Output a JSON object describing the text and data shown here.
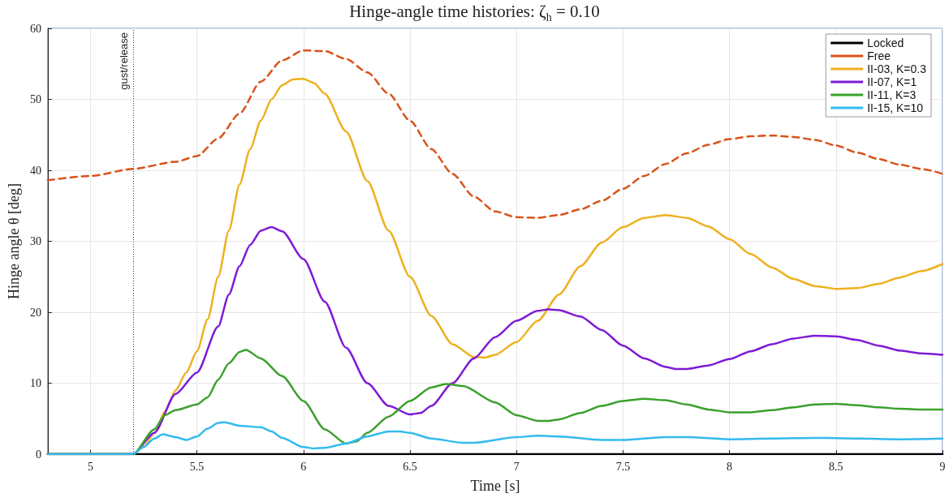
{
  "chart_data": {
    "type": "line",
    "title": "Hinge-angle time histories: ζ$_{h}$ = 0.10",
    "xlabel": "Time [s]",
    "ylabel": "Hinge angle θ [deg]",
    "xlim": [
      4.8,
      9
    ],
    "xticks": [
      5,
      5.5,
      6,
      6.5,
      7,
      7.5,
      8,
      8.5,
      9
    ],
    "ylim": [
      0,
      60
    ],
    "yticks": [
      0,
      10,
      20,
      30,
      40,
      50,
      60
    ],
    "grid": true,
    "legend": "top right",
    "marker": "none",
    "ref_lines": [
      {
        "axis": "x",
        "value": 5.2,
        "label": "gust/release",
        "color": "#333333",
        "line_style": "dotted"
      }
    ],
    "series": [
      {
        "name": "Locked",
        "color": "#000000",
        "x": [
          4.8,
          9
        ],
        "values": [
          0,
          0
        ]
      },
      {
        "name": "Free",
        "color": "#d95319",
        "line_style": "dashed",
        "x": [
          4.8,
          5.0,
          5.2,
          5.4,
          5.5,
          5.6,
          5.7,
          5.8,
          5.9,
          6.0,
          6.1,
          6.2,
          6.3,
          6.4,
          6.5,
          6.6,
          6.7,
          6.8,
          6.9,
          7.0,
          7.1,
          7.2,
          7.3,
          7.4,
          7.5,
          7.6,
          7.7,
          7.8,
          7.9,
          8.0,
          8.1,
          8.2,
          8.3,
          8.4,
          8.5,
          8.6,
          8.7,
          8.8,
          8.9,
          9.0
        ],
        "values": [
          38.6,
          39.2,
          40.2,
          41.2,
          42,
          44.5,
          48,
          52.5,
          55.5,
          56.9,
          56.8,
          55.7,
          53.8,
          50.8,
          47,
          43,
          39.5,
          36.3,
          34.2,
          33.4,
          33.3,
          33.7,
          34.5,
          35.7,
          37.4,
          39.2,
          40.9,
          42.4,
          43.6,
          44.4,
          44.8,
          44.9,
          44.7,
          44.3,
          43.5,
          42.5,
          41.6,
          40.8,
          40.2,
          39.5
        ]
      },
      {
        "name": "II-03, K=0.3",
        "color": "#edb120",
        "x": [
          4.8,
          5.2,
          5.25,
          5.3,
          5.35,
          5.4,
          5.45,
          5.5,
          5.55,
          5.6,
          5.65,
          5.7,
          5.75,
          5.8,
          5.85,
          5.9,
          5.95,
          6.0,
          6.05,
          6.1,
          6.2,
          6.3,
          6.4,
          6.5,
          6.6,
          6.7,
          6.8,
          6.85,
          6.9,
          7.0,
          7.1,
          7.2,
          7.3,
          7.4,
          7.5,
          7.6,
          7.7,
          7.8,
          7.9,
          8.0,
          8.1,
          8.2,
          8.3,
          8.4,
          8.5,
          8.6,
          8.7,
          8.8,
          8.9,
          9.0
        ],
        "values": [
          0,
          0,
          1,
          3,
          6,
          9,
          11.5,
          14.5,
          19,
          25,
          31.5,
          38,
          43,
          47,
          50,
          52,
          52.8,
          52.9,
          52.3,
          50.8,
          45.5,
          38.5,
          31.5,
          25,
          19.5,
          15.5,
          13.7,
          13.6,
          14,
          15.8,
          18.8,
          22.5,
          26.5,
          29.8,
          32,
          33.3,
          33.7,
          33.3,
          32.1,
          30.3,
          28.2,
          26.3,
          24.7,
          23.7,
          23.3,
          23.4,
          24,
          24.9,
          25.8,
          26.8
        ]
      },
      {
        "name": "II-07, K=1",
        "color": "#7e1bd6",
        "x": [
          4.8,
          5.2,
          5.3,
          5.4,
          5.5,
          5.6,
          5.65,
          5.7,
          5.75,
          5.8,
          5.85,
          5.9,
          6.0,
          6.1,
          6.2,
          6.3,
          6.4,
          6.5,
          6.55,
          6.6,
          6.7,
          6.8,
          6.9,
          7.0,
          7.1,
          7.15,
          7.2,
          7.3,
          7.4,
          7.5,
          7.6,
          7.7,
          7.75,
          7.8,
          7.9,
          8.0,
          8.1,
          8.2,
          8.3,
          8.4,
          8.5,
          8.6,
          8.7,
          8.8,
          8.9,
          9.0
        ],
        "values": [
          0,
          0,
          3,
          8.5,
          11.5,
          18,
          22.5,
          26.5,
          29.5,
          31.5,
          32,
          31.4,
          27.5,
          21.5,
          15,
          10,
          6.8,
          5.6,
          5.8,
          6.8,
          10,
          13.5,
          16.5,
          18.8,
          20.2,
          20.4,
          20.3,
          19.4,
          17.5,
          15.3,
          13.5,
          12.3,
          12,
          12,
          12.5,
          13.4,
          14.5,
          15.5,
          16.3,
          16.7,
          16.6,
          16.1,
          15.3,
          14.6,
          14.2,
          14
        ]
      },
      {
        "name": "II-11, K=3",
        "color": "#3aa02c",
        "x": [
          4.8,
          5.2,
          5.3,
          5.35,
          5.4,
          5.5,
          5.55,
          5.6,
          5.65,
          5.7,
          5.73,
          5.8,
          5.9,
          6.0,
          6.1,
          6.2,
          6.25,
          6.3,
          6.4,
          6.5,
          6.6,
          6.67,
          6.75,
          6.9,
          7.0,
          7.1,
          7.15,
          7.2,
          7.3,
          7.4,
          7.5,
          7.6,
          7.7,
          7.8,
          7.9,
          8.0,
          8.1,
          8.2,
          8.3,
          8.4,
          8.5,
          8.6,
          8.7,
          8.8,
          8.9,
          9.0
        ],
        "values": [
          0,
          0,
          3.5,
          5.5,
          6.2,
          7,
          8,
          10.5,
          12.8,
          14.4,
          14.7,
          13.5,
          11,
          7.5,
          3.5,
          1.5,
          1.8,
          3,
          5.3,
          7.5,
          9.4,
          9.9,
          9.6,
          7.3,
          5.5,
          4.7,
          4.7,
          4.9,
          5.8,
          6.8,
          7.5,
          7.8,
          7.6,
          7,
          6.3,
          5.9,
          5.9,
          6.2,
          6.6,
          7,
          7.1,
          6.9,
          6.6,
          6.4,
          6.3,
          6.3
        ]
      },
      {
        "name": "II-15, K=10",
        "color": "#33bbee",
        "x": [
          4.8,
          5.2,
          5.25,
          5.3,
          5.34,
          5.4,
          5.45,
          5.5,
          5.55,
          5.6,
          5.63,
          5.7,
          5.8,
          5.85,
          5.9,
          6.0,
          6.05,
          6.1,
          6.2,
          6.3,
          6.4,
          6.45,
          6.5,
          6.6,
          6.75,
          6.8,
          7.0,
          7.1,
          7.2,
          7.4,
          7.5,
          7.7,
          7.8,
          8.0,
          8.2,
          8.4,
          8.6,
          8.8,
          9.0
        ],
        "values": [
          0,
          0,
          1,
          2.2,
          2.8,
          2.4,
          2,
          2.5,
          3.6,
          4.4,
          4.5,
          4,
          3.8,
          3.2,
          2.3,
          1.0,
          0.8,
          0.9,
          1.5,
          2.5,
          3.2,
          3.2,
          3,
          2.2,
          1.6,
          1.6,
          2.4,
          2.6,
          2.5,
          2,
          2,
          2.4,
          2.4,
          2.1,
          2.2,
          2.3,
          2.2,
          2.1,
          2.2
        ]
      }
    ]
  }
}
